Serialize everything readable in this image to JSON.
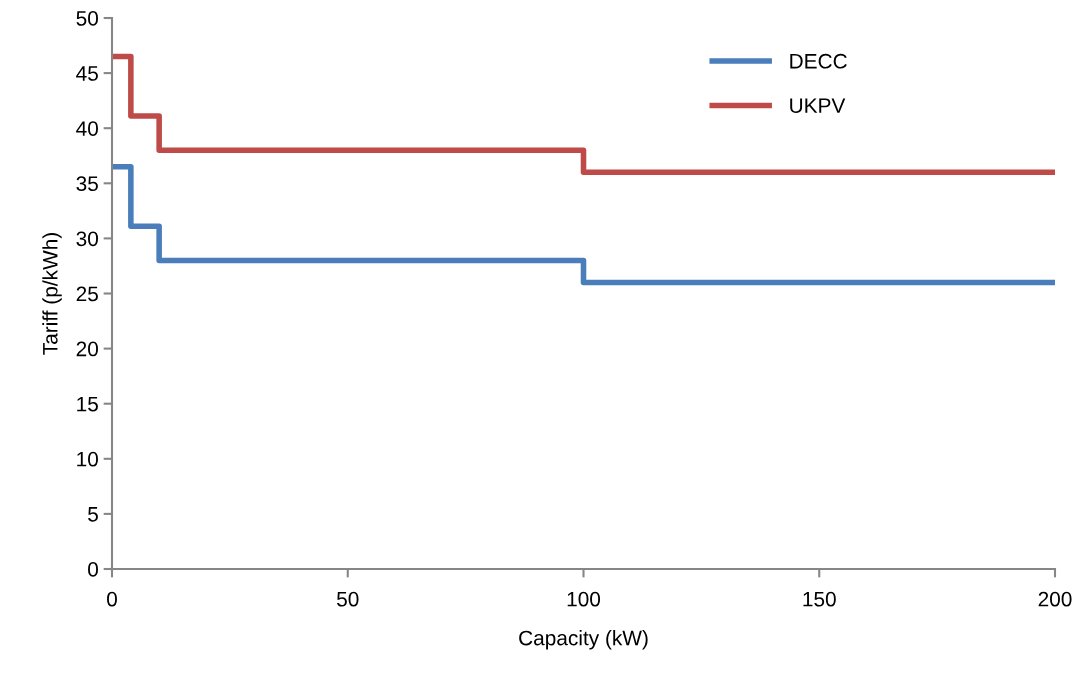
{
  "chart_data": {
    "type": "step",
    "xlabel": "Capacity (kW)",
    "ylabel": "Tariff (p/kWh)",
    "x": [
      0,
      4,
      10,
      100,
      200
    ],
    "series": [
      {
        "name": "DECC",
        "color": "#4a7ebb",
        "values": [
          36.5,
          31.1,
          28,
          26,
          26
        ]
      },
      {
        "name": "UKPV",
        "color": "#be4b48",
        "values": [
          46.5,
          41.1,
          38,
          36,
          36
        ]
      }
    ],
    "xlim": [
      0,
      200
    ],
    "xticks": [
      0,
      50,
      100,
      150,
      200
    ],
    "ylim": [
      0,
      50
    ],
    "yticks": [
      0,
      5,
      10,
      15,
      20,
      25,
      30,
      35,
      40,
      45,
      50
    ],
    "grid": false,
    "legend": "top right",
    "marker": "none",
    "line_style": "solid"
  }
}
